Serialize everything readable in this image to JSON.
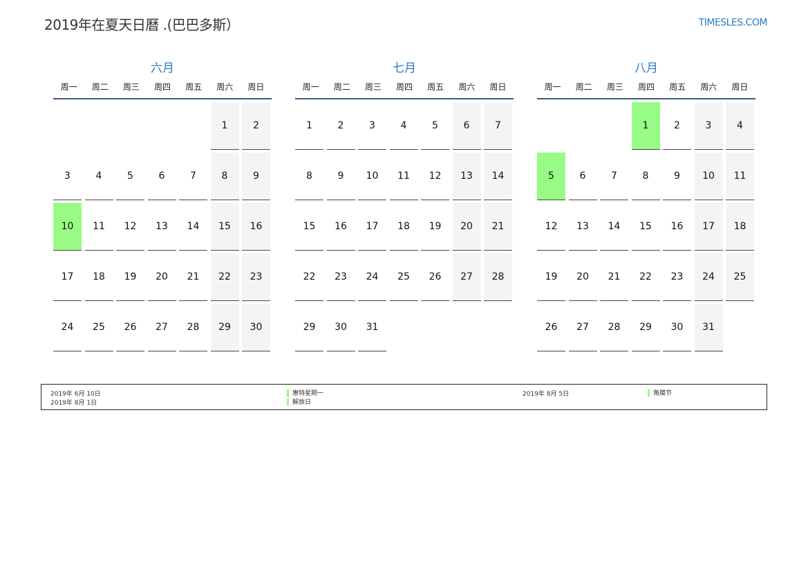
{
  "title": "2019年在夏天日曆 .(巴巴多斯）",
  "brand": "TIMESLES.COM",
  "colors": {
    "accent": "#2f7ac0",
    "holiday": "#98fb85",
    "weekend": "#f4f4f4"
  },
  "weekdays": [
    "周一",
    "周二",
    "周三",
    "周四",
    "周五",
    "周六",
    "周日"
  ],
  "months": [
    {
      "name": "六月",
      "offset": 5,
      "days": 30,
      "holidays": [
        10
      ]
    },
    {
      "name": "七月",
      "offset": 0,
      "days": 31,
      "holidays": []
    },
    {
      "name": "八月",
      "offset": 3,
      "days": 31,
      "holidays": [
        1,
        5
      ]
    }
  ],
  "legend": [
    {
      "date": "2019年 6月 10日",
      "name": "惠特星期一"
    },
    {
      "date": "2019年 8月 1日",
      "name": "解放日"
    },
    {
      "date": "2019年 8月 5日",
      "name": "角膜节"
    }
  ]
}
